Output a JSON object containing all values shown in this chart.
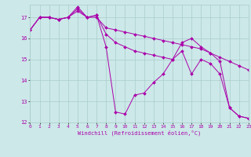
{
  "xlabel": "Windchill (Refroidissement éolien,°C)",
  "background_color": "#cce8e8",
  "grid_color": "#aacccc",
  "line_color": "#aa00aa",
  "x_min": 0,
  "x_max": 23,
  "y_min": 12,
  "y_max": 17.6,
  "yticks": [
    12,
    13,
    14,
    15,
    16,
    17
  ],
  "xticks": [
    0,
    1,
    2,
    3,
    4,
    5,
    6,
    7,
    8,
    9,
    10,
    11,
    12,
    13,
    14,
    15,
    16,
    17,
    18,
    19,
    20,
    21,
    22,
    23
  ],
  "series": [
    {
      "x": [
        0,
        1,
        2,
        3,
        4,
        5,
        6,
        7,
        8,
        9,
        10,
        11,
        12,
        13,
        14,
        15,
        16,
        17,
        18,
        19,
        20,
        21,
        22,
        23
      ],
      "y": [
        16.4,
        17.0,
        17.0,
        16.9,
        17.0,
        17.5,
        17.0,
        17.1,
        15.6,
        12.5,
        12.4,
        13.3,
        13.4,
        13.9,
        14.3,
        15.0,
        15.4,
        14.3,
        15.0,
        14.8,
        14.3,
        12.7,
        12.3,
        12.2
      ]
    },
    {
      "x": [
        0,
        1,
        2,
        3,
        4,
        5,
        6,
        7,
        8,
        9,
        10,
        11,
        12,
        13,
        14,
        15,
        16,
        17,
        18,
        19,
        20,
        21,
        22,
        23
      ],
      "y": [
        16.4,
        17.0,
        17.0,
        16.9,
        17.0,
        17.3,
        17.0,
        17.0,
        16.5,
        16.4,
        16.3,
        16.2,
        16.1,
        16.0,
        15.9,
        15.8,
        15.7,
        15.6,
        15.5,
        15.3,
        15.1,
        14.9,
        14.7,
        14.5
      ]
    },
    {
      "x": [
        0,
        1,
        2,
        3,
        4,
        5,
        6,
        7,
        8,
        9,
        10,
        11,
        12,
        13,
        14,
        15,
        16,
        17,
        18,
        19,
        20,
        21,
        22,
        23
      ],
      "y": [
        16.4,
        17.0,
        17.0,
        16.9,
        17.0,
        17.4,
        17.0,
        17.1,
        16.2,
        15.8,
        15.6,
        15.4,
        15.3,
        15.2,
        15.1,
        15.0,
        15.8,
        16.0,
        15.6,
        15.3,
        14.9,
        12.7,
        12.3,
        12.2
      ]
    }
  ]
}
